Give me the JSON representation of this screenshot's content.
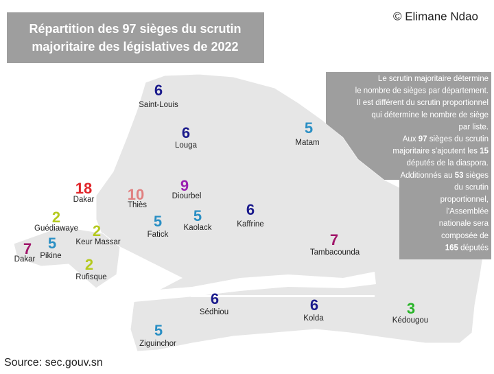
{
  "title": {
    "lines": [
      "Répartition des 97 sièges du scrutin",
      "majoritaire des législatives de 2022"
    ]
  },
  "credit": "© Elimane Ndao",
  "note": {
    "lines": [
      [
        "Le scrutin majoritaire détermine"
      ],
      [
        "le nombre de sièges par département."
      ],
      [
        "Il est différent du scrutin proportionnel"
      ],
      [
        "qui détermine le nombre de siège"
      ],
      [
        "par liste."
      ],
      [
        "Aux ",
        "97",
        " sièges du scrutin"
      ],
      [
        "majoritaire s'ajoutent les ",
        "15"
      ],
      [
        "députés de la diaspora."
      ],
      [
        "Additionnés au ",
        "53",
        " sièges"
      ],
      [
        "du scrutin"
      ],
      [
        "proportionnel,"
      ],
      [
        "l'Assemblée"
      ],
      [
        "nationale sera"
      ],
      [
        "composée de"
      ],
      [
        "165",
        " députés"
      ]
    ]
  },
  "regions": [
    {
      "name": "Saint-Louis",
      "seats": "6",
      "color": "#1a1a8c"
    },
    {
      "name": "Louga",
      "seats": "6",
      "color": "#1a1a8c"
    },
    {
      "name": "Matam",
      "seats": "5",
      "color": "#2a8fc4"
    },
    {
      "name": "Dakar",
      "seats": "18",
      "color": "#e0262a"
    },
    {
      "name": "Thiès",
      "seats": "10",
      "color": "#e08080"
    },
    {
      "name": "Diourbel",
      "seats": "9",
      "color": "#9b1fb0"
    },
    {
      "name": "Guédiawaye",
      "seats": "2",
      "color": "#b5c91e"
    },
    {
      "name": "Keur Massar",
      "seats": "2",
      "color": "#b5c91e"
    },
    {
      "name": "Fatick",
      "seats": "5",
      "color": "#2a8fc4"
    },
    {
      "name": "Kaolack",
      "seats": "5",
      "color": "#2a8fc4"
    },
    {
      "name": "Kaffrine",
      "seats": "6",
      "color": "#1a1a8c"
    },
    {
      "name": "Tambacounda",
      "seats": "7",
      "color": "#a0166a"
    },
    {
      "name": "Dakar",
      "seats": "7",
      "color": "#a0166a"
    },
    {
      "name": "Pikine",
      "seats": "5",
      "color": "#2a8fc4"
    },
    {
      "name": "Rufisque",
      "seats": "2",
      "color": "#b5c91e"
    },
    {
      "name": "Sédhiou",
      "seats": "6",
      "color": "#1a1a8c"
    },
    {
      "name": "Kolda",
      "seats": "6",
      "color": "#1a1a8c"
    },
    {
      "name": "Kédougou",
      "seats": "3",
      "color": "#28b428"
    },
    {
      "name": "Ziguinchor",
      "seats": "5",
      "color": "#2a8fc4"
    }
  ],
  "source": "Source: sec.gouv.sn"
}
